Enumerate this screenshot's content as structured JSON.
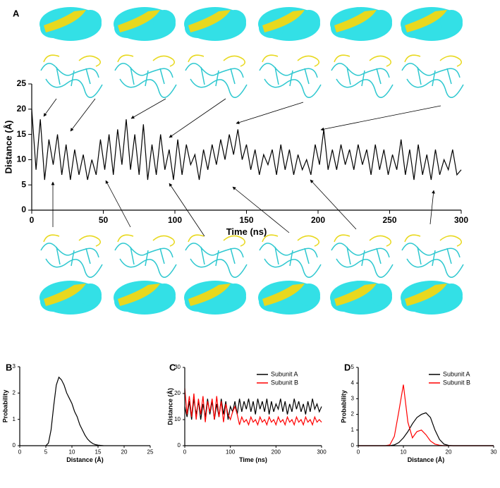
{
  "chart_data": [
    {
      "type": "line",
      "label": "A",
      "xlabel": "Time (ns)",
      "ylabel": "Distance (Å)",
      "x": [
        0,
        3,
        6,
        9,
        12,
        15,
        18,
        21,
        24,
        27,
        30,
        33,
        36,
        39,
        42,
        45,
        48,
        51,
        54,
        57,
        60,
        63,
        66,
        69,
        72,
        75,
        78,
        81,
        84,
        87,
        90,
        93,
        96,
        99,
        102,
        105,
        108,
        111,
        114,
        117,
        120,
        123,
        126,
        129,
        132,
        135,
        138,
        141,
        144,
        147,
        150,
        153,
        156,
        159,
        162,
        165,
        168,
        171,
        174,
        177,
        180,
        183,
        186,
        189,
        192,
        195,
        198,
        201,
        204,
        207,
        210,
        213,
        216,
        219,
        222,
        225,
        228,
        231,
        234,
        237,
        240,
        243,
        246,
        249,
        252,
        255,
        258,
        261,
        264,
        267,
        270,
        273,
        276,
        279,
        282,
        285,
        288,
        291,
        294,
        297,
        300
      ],
      "series": [
        {
          "color": "#000000",
          "values": [
            20,
            8,
            18,
            6,
            14,
            9,
            15,
            7,
            13,
            6,
            12,
            7,
            11,
            6,
            10,
            7,
            14,
            8,
            15,
            7,
            16,
            9,
            18,
            8,
            15,
            7,
            17,
            6,
            13,
            7,
            15,
            8,
            12,
            6,
            14,
            7,
            13,
            9,
            11,
            6,
            12,
            8,
            13,
            9,
            14,
            10,
            15,
            11,
            16,
            10,
            13,
            8,
            12,
            7,
            11,
            9,
            12,
            7,
            13,
            8,
            12,
            7,
            11,
            8,
            10,
            7,
            13,
            9,
            16,
            8,
            12,
            8,
            13,
            9,
            12,
            8,
            13,
            9,
            12,
            7,
            13,
            8,
            12,
            7,
            11,
            8,
            14,
            7,
            12,
            6,
            13,
            7,
            11,
            6,
            12,
            7,
            10,
            8,
            12,
            7,
            8
          ]
        }
      ],
      "xlim": [
        0,
        300
      ],
      "xticks": [
        0,
        50,
        100,
        150,
        200,
        250,
        300
      ],
      "ylim": [
        0,
        25
      ],
      "yticks": [
        0,
        5,
        10,
        15,
        20,
        25
      ]
    },
    {
      "type": "line",
      "label": "B",
      "xlabel": "Distance (Å)",
      "ylabel": "Probability",
      "x": [
        5,
        5.5,
        6,
        6.5,
        7,
        7.5,
        8,
        8.5,
        9,
        9.5,
        10,
        10.5,
        11,
        11.5,
        12,
        12.5,
        13,
        13.5,
        14,
        14.5,
        15,
        15.5,
        16
      ],
      "series": [
        {
          "color": "#000000",
          "values": [
            0,
            0.1,
            0.6,
            1.5,
            2.3,
            2.6,
            2.5,
            2.3,
            2.0,
            1.8,
            1.6,
            1.3,
            1.1,
            0.8,
            0.6,
            0.4,
            0.25,
            0.15,
            0.08,
            0.04,
            0.02,
            0.01,
            0
          ]
        }
      ],
      "xlim": [
        0,
        25
      ],
      "xticks": [
        0,
        5,
        10,
        15,
        20,
        25
      ],
      "ylim": [
        0,
        3
      ],
      "yticks": [
        0,
        1,
        2,
        3
      ]
    },
    {
      "type": "line",
      "label": "C",
      "xlabel": "Time (ns)",
      "ylabel": "Distance (Å)",
      "legend": "upper right",
      "x": [
        0,
        5,
        10,
        15,
        20,
        25,
        30,
        35,
        40,
        45,
        50,
        55,
        60,
        65,
        70,
        75,
        80,
        85,
        90,
        95,
        100,
        105,
        110,
        115,
        120,
        125,
        130,
        135,
        140,
        145,
        150,
        155,
        160,
        165,
        170,
        175,
        180,
        185,
        190,
        195,
        200,
        205,
        210,
        215,
        220,
        225,
        230,
        235,
        240,
        245,
        250,
        255,
        260,
        265,
        270,
        275,
        280,
        285,
        290,
        295,
        300
      ],
      "series": [
        {
          "name": "Subunit A",
          "color": "#000000",
          "values": [
            15,
            11,
            17,
            10,
            18,
            12,
            17,
            10,
            16,
            11,
            18,
            12,
            17,
            10,
            16,
            11,
            18,
            12,
            17,
            10,
            15,
            13,
            17,
            12,
            18,
            13,
            17,
            14,
            18,
            13,
            17,
            12,
            18,
            14,
            17,
            13,
            18,
            12,
            17,
            13,
            16,
            14,
            18,
            13,
            17,
            12,
            16,
            13,
            18,
            14,
            17,
            13,
            16,
            12,
            17,
            13,
            18,
            14,
            16,
            13,
            15
          ]
        },
        {
          "name": "Subunit B",
          "color": "#ff0000",
          "values": [
            22,
            12,
            19,
            11,
            20,
            10,
            18,
            12,
            19,
            9,
            17,
            13,
            18,
            10,
            19,
            11,
            17,
            9,
            16,
            12,
            10,
            13,
            15,
            12,
            8,
            11,
            9,
            10,
            8,
            11,
            9,
            10,
            8,
            11,
            9,
            10,
            8,
            11,
            9,
            10,
            8,
            11,
            9,
            10,
            8,
            11,
            9,
            10,
            8,
            11,
            9,
            10,
            8,
            11,
            9,
            10,
            8,
            11,
            9,
            10,
            9
          ]
        }
      ],
      "xlim": [
        0,
        300
      ],
      "xticks": [
        0,
        100,
        200,
        300
      ],
      "ylim": [
        0,
        30
      ],
      "yticks": [
        0,
        10,
        20,
        30
      ]
    },
    {
      "type": "line",
      "label": "D",
      "xlabel": "Distance (Å)",
      "ylabel": "Probability",
      "legend": "upper right",
      "x": [
        0,
        1,
        2,
        3,
        4,
        5,
        6,
        7,
        8,
        9,
        10,
        11,
        12,
        13,
        14,
        15,
        16,
        17,
        18,
        19,
        20,
        21,
        22,
        23,
        24,
        25,
        26,
        27,
        28,
        29,
        30
      ],
      "series": [
        {
          "name": "Subunit A",
          "color": "#000000",
          "values": [
            0,
            0,
            0,
            0,
            0,
            0,
            0,
            0,
            0.05,
            0.2,
            0.5,
            0.9,
            1.4,
            1.8,
            2.0,
            2.1,
            1.8,
            1.0,
            0.4,
            0.1,
            0.02,
            0,
            0,
            0,
            0,
            0,
            0,
            0,
            0,
            0,
            0
          ]
        },
        {
          "name": "Subunit B",
          "color": "#ff0000",
          "values": [
            0,
            0,
            0,
            0,
            0,
            0,
            0,
            0.05,
            0.6,
            2.2,
            3.9,
            1.5,
            0.5,
            0.9,
            1.0,
            0.7,
            0.3,
            0.1,
            0.03,
            0,
            0,
            0,
            0,
            0,
            0,
            0,
            0,
            0,
            0,
            0,
            0
          ]
        }
      ],
      "xlim": [
        0,
        30
      ],
      "xticks": [
        0,
        10,
        20,
        30
      ],
      "ylim": [
        0,
        5
      ],
      "yticks": [
        0,
        1,
        2,
        3,
        4,
        5
      ]
    }
  ]
}
